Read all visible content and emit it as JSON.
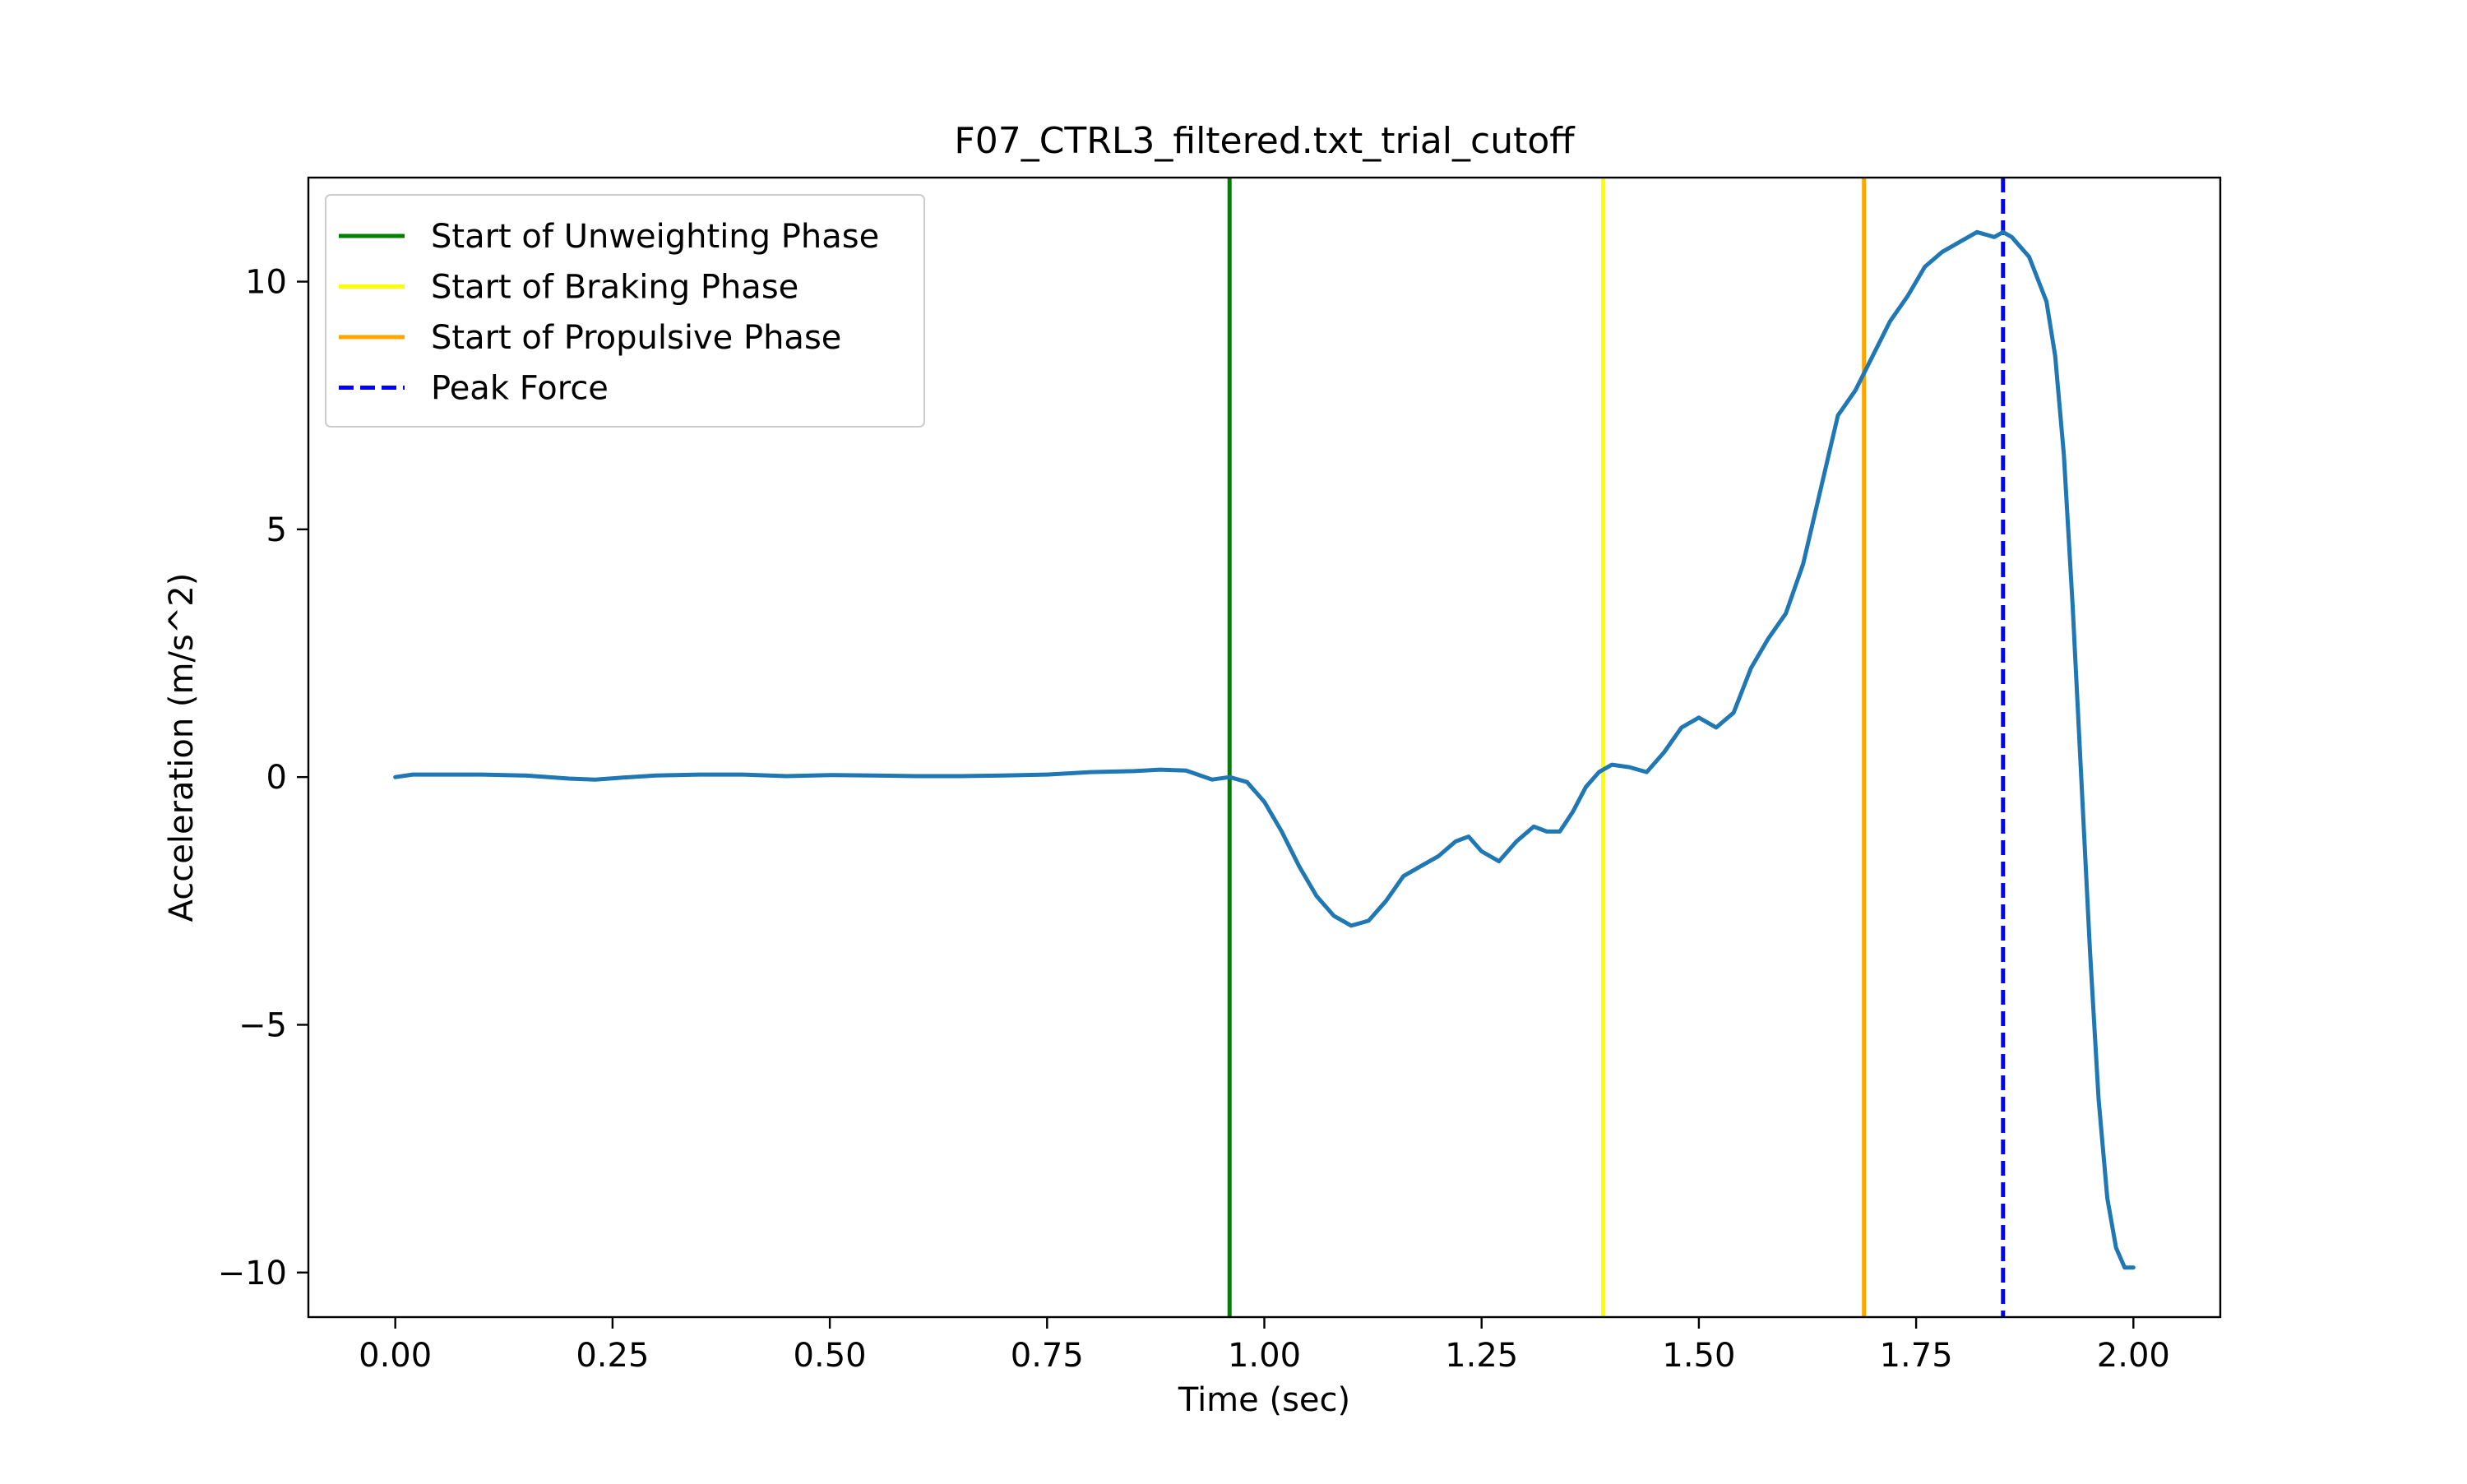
{
  "chart_data": {
    "type": "line",
    "title": "F07_CTRL3_filtered.txt_trial_cutoff",
    "xlabel": "Time (sec)",
    "ylabel": "Acceleration (m/s^2)",
    "xlim": [
      -0.1,
      2.1
    ],
    "ylim": [
      -10.9,
      12.1
    ],
    "xticks": [
      0.0,
      0.25,
      0.5,
      0.75,
      1.0,
      1.25,
      1.5,
      1.75,
      2.0
    ],
    "xtick_labels": [
      "0.00",
      "0.25",
      "0.50",
      "0.75",
      "1.00",
      "1.25",
      "1.50",
      "1.75",
      "2.00"
    ],
    "yticks": [
      -10,
      -5,
      0,
      5,
      10
    ],
    "ytick_labels": [
      "−10",
      "−5",
      "0",
      "5",
      "10"
    ],
    "grid": false,
    "legend_position": "top-left",
    "series": [
      {
        "color": "#1f77b4",
        "x": [
          0.0,
          0.02,
          0.05,
          0.1,
          0.15,
          0.2,
          0.23,
          0.27,
          0.3,
          0.35,
          0.4,
          0.45,
          0.5,
          0.55,
          0.6,
          0.65,
          0.7,
          0.75,
          0.8,
          0.85,
          0.88,
          0.91,
          0.94,
          0.96,
          0.98,
          1.0,
          1.02,
          1.04,
          1.06,
          1.08,
          1.1,
          1.12,
          1.14,
          1.16,
          1.18,
          1.2,
          1.22,
          1.235,
          1.25,
          1.27,
          1.29,
          1.31,
          1.325,
          1.34,
          1.355,
          1.37,
          1.385,
          1.4,
          1.42,
          1.44,
          1.46,
          1.48,
          1.5,
          1.52,
          1.54,
          1.56,
          1.58,
          1.6,
          1.62,
          1.64,
          1.66,
          1.68,
          1.7,
          1.72,
          1.74,
          1.76,
          1.78,
          1.8,
          1.82,
          1.84,
          1.85,
          1.86,
          1.88,
          1.9,
          1.91,
          1.92,
          1.93,
          1.94,
          1.95,
          1.96,
          1.97,
          1.98,
          1.99,
          2.0
        ],
        "y": [
          0.0,
          0.05,
          0.05,
          0.05,
          0.03,
          -0.03,
          -0.05,
          0.0,
          0.03,
          0.05,
          0.05,
          0.02,
          0.04,
          0.03,
          0.02,
          0.02,
          0.03,
          0.05,
          0.1,
          0.12,
          0.15,
          0.13,
          -0.05,
          0.0,
          -0.1,
          -0.5,
          -1.1,
          -1.8,
          -2.4,
          -2.8,
          -3.0,
          -2.9,
          -2.5,
          -2.0,
          -1.8,
          -1.6,
          -1.3,
          -1.2,
          -1.5,
          -1.7,
          -1.3,
          -1.0,
          -1.1,
          -1.1,
          -0.7,
          -0.2,
          0.1,
          0.25,
          0.2,
          0.1,
          0.5,
          1.0,
          1.2,
          1.0,
          1.3,
          2.2,
          2.8,
          3.3,
          4.3,
          5.8,
          7.3,
          7.8,
          8.5,
          9.2,
          9.7,
          10.3,
          10.6,
          10.8,
          11.0,
          10.9,
          11.0,
          10.9,
          10.5,
          9.6,
          8.5,
          6.5,
          3.5,
          0.0,
          -3.5,
          -6.5,
          -8.5,
          -9.5,
          -9.9,
          -9.9
        ]
      }
    ],
    "vlines": [
      {
        "x": 0.96,
        "color": "#008000",
        "style": "solid",
        "label": "Start of Unweighting Phase"
      },
      {
        "x": 1.39,
        "color": "#ffff00",
        "style": "solid",
        "label": "Start of Braking Phase"
      },
      {
        "x": 1.69,
        "color": "#ffa500",
        "style": "solid",
        "label": "Start of Propulsive Phase"
      },
      {
        "x": 1.85,
        "color": "#0000ff",
        "style": "dashed",
        "label": "Peak Force"
      }
    ]
  }
}
